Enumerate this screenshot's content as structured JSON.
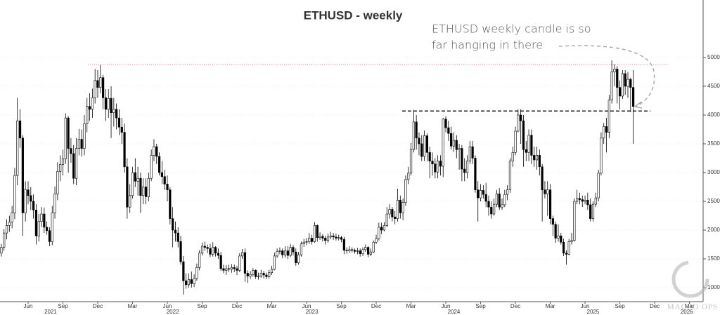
{
  "chart_data": {
    "type": "candlestick",
    "title": "ETHUSD - weekly",
    "annotation": [
      "ETHUSD weekly candle is so",
      "far hanging in there"
    ],
    "watermark": "MACRO OPS",
    "up_color": "#ffffff",
    "down_color": "#000000",
    "outline_color": "#000000",
    "grid": true,
    "xlim": [
      -0.5,
      262.1
    ],
    "ylim": [
      756,
      6000
    ],
    "yticks": [
      1000,
      1500,
      2000,
      2500,
      3000,
      3500,
      4000,
      4500,
      5000
    ],
    "xticks": [
      {
        "value": 10,
        "label": "Jun"
      },
      {
        "value": 23,
        "label": "Sep"
      },
      {
        "value": 36,
        "label": "Dec"
      },
      {
        "value": 49,
        "label": "Mar"
      },
      {
        "value": 62,
        "label": "Jun"
      },
      {
        "value": 75,
        "label": "Sep"
      },
      {
        "value": 88,
        "label": "Dec"
      },
      {
        "value": 101,
        "label": "Mar"
      },
      {
        "value": 114,
        "label": "Jun"
      },
      {
        "value": 127,
        "label": "Sep"
      },
      {
        "value": 140,
        "label": "Dec"
      },
      {
        "value": 153,
        "label": "Mar"
      },
      {
        "value": 166,
        "label": "Jun"
      },
      {
        "value": 179,
        "label": "Sep"
      },
      {
        "value": 192,
        "label": "Dec"
      },
      {
        "value": 205,
        "label": "Mar"
      },
      {
        "value": 218,
        "label": "Jun"
      },
      {
        "value": 231,
        "label": "Sep"
      },
      {
        "value": 244,
        "label": "Dec"
      },
      {
        "value": 257,
        "label": "Mar"
      }
    ],
    "year_ticks": [
      {
        "value": 18.4,
        "label": "2021"
      },
      {
        "value": 64,
        "label": "2022"
      },
      {
        "value": 116,
        "label": "2023"
      },
      {
        "value": 169,
        "label": "2024"
      },
      {
        "value": 221,
        "label": "2025"
      },
      {
        "value": 256,
        "label": "2026"
      }
    ],
    "hlines": [
      {
        "y": 4880,
        "x_from": 32.3,
        "x_to": 248.4,
        "color": "#e07a7a",
        "style": "dotted"
      },
      {
        "y": 4070,
        "x_from": 149.7,
        "x_to": 242.4,
        "color": "#222222",
        "style": "dashed"
      }
    ],
    "x": [
      0,
      1,
      2,
      3,
      4,
      5,
      6,
      7,
      8,
      9,
      10,
      11,
      12,
      13,
      14,
      15,
      16,
      17,
      18,
      19,
      20,
      21,
      22,
      23,
      24,
      25,
      26,
      27,
      28,
      29,
      30,
      31,
      32,
      33,
      34,
      35,
      36,
      37,
      38,
      39,
      40,
      41,
      42,
      43,
      44,
      45,
      46,
      47,
      48,
      49,
      50,
      51,
      52,
      53,
      54,
      55,
      56,
      57,
      58,
      59,
      60,
      61,
      62,
      63,
      64,
      65,
      66,
      67,
      68,
      69,
      70,
      71,
      72,
      73,
      74,
      75,
      76,
      77,
      78,
      79,
      80,
      81,
      82,
      83,
      84,
      85,
      86,
      87,
      88,
      89,
      90,
      91,
      92,
      93,
      94,
      95,
      96,
      97,
      98,
      99,
      100,
      101,
      102,
      103,
      104,
      105,
      106,
      107,
      108,
      109,
      110,
      111,
      112,
      113,
      114,
      115,
      116,
      117,
      118,
      119,
      120,
      121,
      122,
      123,
      124,
      125,
      126,
      127,
      128,
      129,
      130,
      131,
      132,
      133,
      134,
      135,
      136,
      137,
      138,
      139,
      140,
      141,
      142,
      143,
      144,
      145,
      146,
      147,
      148,
      149,
      150,
      151,
      152,
      153,
      154,
      155,
      156,
      157,
      158,
      159,
      160,
      161,
      162,
      163,
      164,
      165,
      166,
      167,
      168,
      169,
      170,
      171,
      172,
      173,
      174,
      175,
      176,
      177,
      178,
      179,
      180,
      181,
      182,
      183,
      184,
      185,
      186,
      187,
      188,
      189,
      190,
      191,
      192,
      193,
      194,
      195,
      196,
      197,
      198,
      199,
      200,
      201,
      202,
      203,
      204,
      205,
      206,
      207,
      208,
      209,
      210,
      211,
      212,
      213,
      214,
      215,
      216,
      217,
      218,
      219,
      220,
      221,
      222,
      223,
      224,
      225,
      226,
      227,
      228,
      229,
      230,
      231,
      232,
      233,
      234,
      235,
      236
    ],
    "open": [
      1600,
      1700,
      1950,
      2080,
      2140,
      2300,
      2950,
      3900,
      3600,
      2300,
      2700,
      2600,
      2500,
      2350,
      1900,
      2150,
      2280,
      2050,
      1990,
      1800,
      2300,
      2630,
      3020,
      3140,
      3240,
      3950,
      3420,
      3330,
      2900,
      3420,
      3580,
      3420,
      3850,
      4150,
      4100,
      4300,
      4600,
      4480,
      4650,
      4300,
      4100,
      4290,
      4040,
      4100,
      3950,
      3790,
      3700,
      3100,
      2400,
      2600,
      3000,
      2850,
      2900,
      2600,
      2750,
      2580,
      2900,
      3300,
      3450,
      3280,
      3000,
      2930,
      2800,
      2700,
      2200,
      2000,
      1950,
      1800,
      1450,
      1120,
      1050,
      1140,
      1070,
      1160,
      1350,
      1600,
      1720,
      1700,
      1680,
      1580,
      1700,
      1600,
      1560,
      1330,
      1300,
      1330,
      1320,
      1350,
      1330,
      1300,
      1550,
      1610,
      1250,
      1200,
      1230,
      1300,
      1190,
      1200,
      1250,
      1220,
      1190,
      1260,
      1320,
      1550,
      1630,
      1640,
      1570,
      1640,
      1560,
      1700,
      1620,
      1430,
      1570,
      1760,
      1790,
      1800,
      1860,
      1800,
      2080,
      1870,
      1890,
      1860,
      1820,
      1880,
      1900,
      1880,
      1860,
      1870,
      1840,
      1650,
      1640,
      1660,
      1650,
      1630,
      1640,
      1590,
      1660,
      1700,
      1580,
      1620,
      1790,
      1850,
      2050,
      2000,
      2080,
      2280,
      2360,
      2230,
      2200,
      2520,
      2300,
      2480,
      2880,
      2990,
      3400,
      3880,
      3600,
      3500,
      3280,
      3640,
      3350,
      3200,
      3150,
      3010,
      3200,
      3110,
      3930,
      3780,
      3680,
      3460,
      3560,
      3400,
      3420,
      3060,
      3000,
      3200,
      3450,
      3250,
      2700,
      2560,
      2690,
      2620,
      2500,
      2400,
      2280,
      2450,
      2630,
      2400,
      2440,
      2620,
      2700,
      3200,
      3350,
      3720,
      4000,
      3900,
      3400,
      3350,
      3650,
      3300,
      3220,
      3300,
      3100,
      2700,
      2630,
      2700,
      2200,
      2100,
      1860,
      1900,
      1790,
      1600,
      1580,
      1800,
      1820,
      2500,
      2550,
      2530,
      2500,
      2520,
      2440,
      2200,
      2450,
      2560,
      2990,
      3600,
      3800,
      3700,
      4260,
      4750,
      4800,
      4480,
      4330,
      4720,
      4500,
      4620,
      4480
    ],
    "high": [
      1760,
      2020,
      2190,
      2250,
      2420,
      3080,
      4300,
      4100,
      3650,
      2850,
      2850,
      2750,
      2620,
      2450,
      2280,
      2400,
      2390,
      2150,
      2050,
      2420,
      2760,
      3180,
      3300,
      3400,
      4030,
      3980,
      3600,
      3480,
      3600,
      3760,
      3750,
      4000,
      4300,
      4380,
      4460,
      4800,
      4780,
      4870,
      4700,
      4450,
      4450,
      4500,
      4300,
      4200,
      4100,
      3950,
      3850,
      3250,
      2800,
      3100,
      3250,
      3100,
      3000,
      2900,
      2900,
      3000,
      3400,
      3580,
      3500,
      3350,
      3200,
      3050,
      2950,
      2750,
      2400,
      2150,
      2050,
      1900,
      1550,
      1250,
      1250,
      1280,
      1230,
      1420,
      1650,
      1780,
      1800,
      1750,
      1760,
      1790,
      1720,
      1680,
      1620,
      1400,
      1390,
      1400,
      1410,
      1400,
      1380,
      1600,
      1670,
      1680,
      1300,
      1290,
      1340,
      1320,
      1260,
      1310,
      1290,
      1260,
      1310,
      1380,
      1610,
      1680,
      1700,
      1680,
      1720,
      1720,
      1760,
      1740,
      1680,
      1620,
      1800,
      1850,
      1860,
      1950,
      1920,
      2140,
      2100,
      1960,
      1930,
      1900,
      1940,
      1970,
      1950,
      1940,
      1920,
      1900,
      1880,
      1700,
      1720,
      1700,
      1680,
      1690,
      1680,
      1700,
      1750,
      1720,
      1680,
      1820,
      1920,
      2130,
      2130,
      2140,
      2400,
      2450,
      2400,
      2330,
      2720,
      2600,
      2550,
      2950,
      3100,
      3520,
      4090,
      4000,
      3700,
      3650,
      3730,
      3680,
      3450,
      3350,
      3250,
      3300,
      3300,
      3950,
      3980,
      3900,
      3800,
      3700,
      3650,
      3500,
      3480,
      3250,
      3300,
      3550,
      3550,
      3300,
      2850,
      2800,
      2780,
      2820,
      2600,
      2500,
      2550,
      2700,
      2730,
      2550,
      2700,
      2780,
      3250,
      3450,
      3800,
      4100,
      4100,
      4000,
      3550,
      3750,
      3750,
      3450,
      3450,
      3400,
      3150,
      2850,
      2850,
      2800,
      2250,
      2150,
      2100,
      1950,
      1850,
      1650,
      1850,
      1950,
      2550,
      2700,
      2650,
      2600,
      2600,
      2650,
      2550,
      2500,
      2650,
      3050,
      3700,
      3860,
      3950,
      4350,
      4950,
      4880,
      4850,
      4600,
      4780,
      4780,
      4750,
      4650,
      4780
    ],
    "low": [
      1540,
      1640,
      1840,
      1970,
      2030,
      2190,
      2780,
      3430,
      1900,
      2150,
      2450,
      2350,
      2200,
      1750,
      1800,
      2050,
      1950,
      1920,
      1720,
      1740,
      2200,
      2520,
      2850,
      2950,
      3150,
      3000,
      3170,
      2800,
      2780,
      3300,
      3280,
      3300,
      3700,
      3900,
      3950,
      4200,
      4300,
      4380,
      4100,
      3900,
      3950,
      3600,
      3800,
      3750,
      3650,
      3500,
      3000,
      2200,
      2300,
      2550,
      2750,
      2600,
      2300,
      2450,
      2450,
      2500,
      2850,
      3200,
      3150,
      2950,
      2800,
      2700,
      2500,
      2100,
      1700,
      1800,
      1700,
      1400,
      880,
      980,
      1000,
      1000,
      1010,
      1120,
      1300,
      1560,
      1640,
      1600,
      1530,
      1540,
      1540,
      1500,
      1290,
      1250,
      1220,
      1270,
      1260,
      1270,
      1220,
      1270,
      1500,
      1100,
      1080,
      1150,
      1190,
      1150,
      1140,
      1170,
      1160,
      1150,
      1160,
      1220,
      1300,
      1520,
      1580,
      1510,
      1520,
      1500,
      1530,
      1560,
      1380,
      1400,
      1540,
      1710,
      1740,
      1760,
      1750,
      1780,
      1800,
      1830,
      1800,
      1750,
      1780,
      1840,
      1830,
      1820,
      1820,
      1790,
      1580,
      1590,
      1600,
      1610,
      1590,
      1580,
      1540,
      1550,
      1620,
      1530,
      1550,
      1600,
      1760,
      1820,
      1930,
      1980,
      2050,
      2200,
      2150,
      2100,
      2150,
      2200,
      2170,
      2420,
      2800,
      2950,
      3350,
      3400,
      3300,
      3200,
      3200,
      3200,
      2900,
      2950,
      2900,
      2900,
      2950,
      2920,
      3700,
      3550,
      3400,
      3360,
      3250,
      3050,
      2850,
      2850,
      2900,
      3150,
      3150,
      2650,
      2150,
      2500,
      2550,
      2400,
      2250,
      2200,
      2250,
      2400,
      2350,
      2350,
      2400,
      2520,
      2650,
      3100,
      3300,
      3700,
      3500,
      3100,
      3200,
      3200,
      3150,
      3100,
      3050,
      2950,
      2150,
      2550,
      2250,
      2100,
      1900,
      1780,
      1800,
      1750,
      1550,
      1400,
      1560,
      1750,
      1800,
      2450,
      2450,
      2400,
      2450,
      2350,
      2150,
      2150,
      2400,
      2500,
      2950,
      3500,
      3350,
      3600,
      4200,
      4500,
      4200,
      4100,
      4280,
      4350,
      4300,
      4050,
      3500
    ],
    "close": [
      1700,
      1950,
      2080,
      2140,
      2300,
      2950,
      3900,
      3600,
      2300,
      2700,
      2600,
      2500,
      2350,
      1900,
      2150,
      2280,
      2050,
      1990,
      1800,
      2300,
      2630,
      3020,
      3140,
      3240,
      3950,
      3420,
      3330,
      2900,
      3420,
      3580,
      3420,
      3850,
      4150,
      4100,
      4300,
      4600,
      4480,
      4650,
      4300,
      4100,
      4290,
      4040,
      4100,
      3950,
      3790,
      3700,
      3100,
      2400,
      2600,
      3000,
      2850,
      2900,
      2600,
      2750,
      2580,
      2900,
      3300,
      3450,
      3280,
      3000,
      2930,
      2800,
      2700,
      2200,
      2000,
      1950,
      1800,
      1450,
      1120,
      1050,
      1140,
      1070,
      1160,
      1350,
      1600,
      1720,
      1700,
      1680,
      1580,
      1700,
      1600,
      1560,
      1330,
      1300,
      1330,
      1320,
      1350,
      1330,
      1300,
      1550,
      1610,
      1250,
      1200,
      1230,
      1300,
      1190,
      1200,
      1250,
      1220,
      1190,
      1260,
      1320,
      1550,
      1630,
      1640,
      1570,
      1640,
      1560,
      1700,
      1620,
      1430,
      1570,
      1760,
      1790,
      1800,
      1860,
      1800,
      2080,
      1870,
      1890,
      1860,
      1820,
      1880,
      1900,
      1880,
      1860,
      1870,
      1840,
      1650,
      1640,
      1660,
      1650,
      1630,
      1640,
      1590,
      1660,
      1700,
      1580,
      1620,
      1790,
      1850,
      2050,
      2000,
      2080,
      2280,
      2360,
      2230,
      2200,
      2520,
      2300,
      2480,
      2880,
      2990,
      3400,
      3880,
      3600,
      3500,
      3280,
      3640,
      3350,
      3200,
      3150,
      3010,
      3200,
      3110,
      3930,
      3780,
      3680,
      3460,
      3560,
      3400,
      3420,
      3060,
      3000,
      3200,
      3450,
      3250,
      2700,
      2560,
      2690,
      2620,
      2500,
      2400,
      2280,
      2450,
      2630,
      2400,
      2440,
      2620,
      2700,
      3200,
      3350,
      3720,
      4000,
      3900,
      3400,
      3350,
      3650,
      3300,
      3220,
      3300,
      3100,
      2700,
      2630,
      2700,
      2200,
      2100,
      1860,
      1900,
      1790,
      1600,
      1580,
      1800,
      1820,
      2500,
      2550,
      2530,
      2500,
      2520,
      2440,
      2200,
      2450,
      2560,
      2990,
      3600,
      3800,
      3700,
      4260,
      4750,
      4800,
      4480,
      4330,
      4720,
      4500,
      4620,
      4480,
      4150
    ]
  }
}
